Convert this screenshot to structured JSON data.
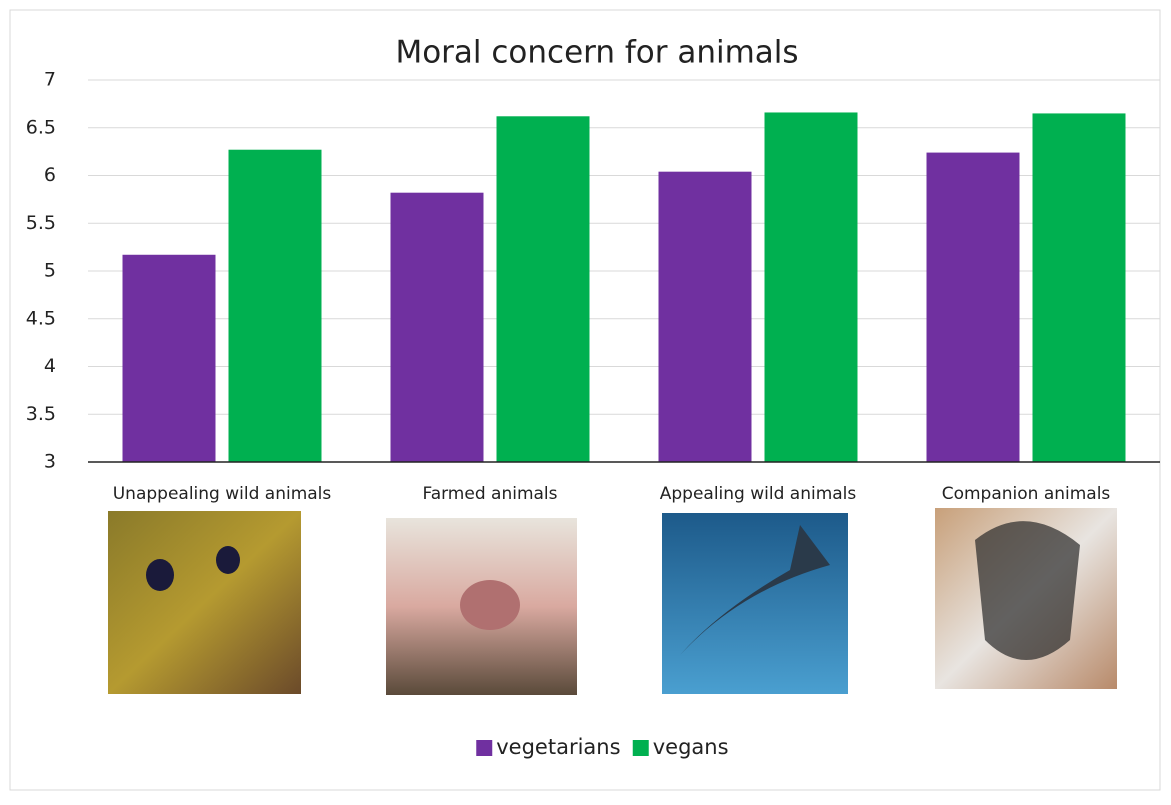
{
  "chart_data": {
    "type": "bar",
    "title": "Moral concern for animals",
    "categories": [
      "Unappealing wild animals",
      "Farmed animals",
      "Appealing wild animals",
      "Companion animals"
    ],
    "series": [
      {
        "name": "vegetarians",
        "color": "#7030a0",
        "values": [
          5.17,
          5.82,
          6.04,
          6.24
        ]
      },
      {
        "name": "vegans",
        "color": "#00b050",
        "values": [
          6.27,
          6.62,
          6.66,
          6.65
        ]
      }
    ],
    "ylim": [
      3,
      7
    ],
    "yticks": [
      3,
      3.5,
      4,
      4.5,
      5,
      5.5,
      6,
      6.5,
      7
    ],
    "grid": true,
    "legend": "bottom"
  }
}
